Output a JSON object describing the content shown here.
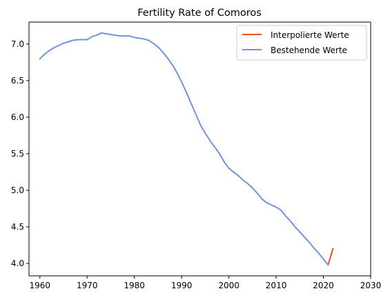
{
  "chart_data": {
    "type": "line",
    "title": "Fertility Rate of Comoros",
    "xlabel": "",
    "ylabel": "",
    "xlim": [
      1957.7,
      2030
    ],
    "ylim": [
      3.83,
      7.3
    ],
    "x_ticks": [
      1960,
      1970,
      1980,
      1990,
      2000,
      2010,
      2020,
      2030
    ],
    "y_ticks": [
      4.0,
      4.5,
      5.0,
      5.5,
      6.0,
      6.5,
      7.0
    ],
    "x_tick_labels": [
      "1960",
      "1970",
      "1980",
      "1990",
      "2000",
      "2010",
      "2020",
      "2030"
    ],
    "y_tick_labels": [
      "4.0",
      "4.5",
      "5.0",
      "5.5",
      "6.0",
      "6.5",
      "7.0"
    ],
    "grid": false,
    "legend_position": "top-right",
    "series": [
      {
        "name": "Interpolierte Werte",
        "color": "#f4511e",
        "x": [
          2021,
          2022
        ],
        "y": [
          3.98,
          4.2
        ]
      },
      {
        "name": "Bestehende Werte",
        "color": "#6f94dd",
        "x": [
          1960,
          1961,
          1962,
          1963,
          1964,
          1965,
          1966,
          1967,
          1968,
          1969,
          1970,
          1971,
          1972,
          1973,
          1974,
          1975,
          1976,
          1977,
          1978,
          1979,
          1980,
          1981,
          1982,
          1983,
          1984,
          1985,
          1986,
          1987,
          1988,
          1989,
          1990,
          1991,
          1992,
          1993,
          1994,
          1995,
          1996,
          1997,
          1998,
          1999,
          2000,
          2001,
          2002,
          2003,
          2004,
          2005,
          2006,
          2007,
          2008,
          2009,
          2010,
          2011,
          2012,
          2013,
          2014,
          2015,
          2016,
          2017,
          2018,
          2019,
          2020,
          2021
        ],
        "y": [
          6.8,
          6.86,
          6.91,
          6.95,
          6.98,
          7.01,
          7.03,
          7.05,
          7.06,
          7.06,
          7.06,
          7.1,
          7.12,
          7.15,
          7.14,
          7.13,
          7.12,
          7.11,
          7.11,
          7.11,
          7.09,
          7.08,
          7.07,
          7.05,
          7.01,
          6.96,
          6.89,
          6.81,
          6.72,
          6.61,
          6.48,
          6.34,
          6.19,
          6.04,
          5.89,
          5.78,
          5.68,
          5.59,
          5.5,
          5.39,
          5.3,
          5.25,
          5.2,
          5.14,
          5.09,
          5.03,
          4.96,
          4.88,
          4.83,
          4.8,
          4.77,
          4.73,
          4.65,
          4.58,
          4.5,
          4.43,
          4.36,
          4.29,
          4.21,
          4.14,
          4.06,
          3.98
        ]
      }
    ]
  }
}
